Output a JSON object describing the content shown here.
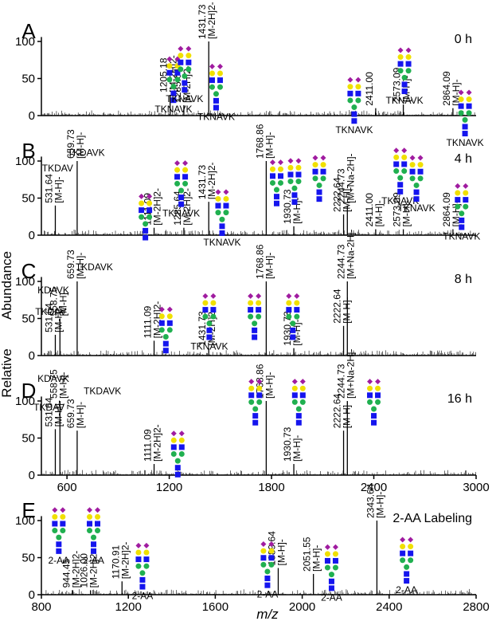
{
  "chart_data": {
    "type": "line",
    "ylabel": "Relative Abundance",
    "xlabel": "m/z",
    "colors": {
      "hexnac": "#1515ee",
      "hex": "#20b050",
      "gal": "#f0e000",
      "neuac": "#a01ca0",
      "line": "#000000"
    },
    "panels": [
      {
        "label": "A",
        "timepoint": "0 h",
        "xlim": [
          450,
          3000
        ],
        "xticks": [],
        "yticks": [
          0,
          50,
          100
        ],
        "peaks": [
          {
            "mz": 1205.18,
            "y": 28,
            "ann": [
              "1205.18",
              "[M-2H]2-"
            ]
          },
          {
            "mz": 1285.64,
            "y": 14,
            "ann": [
              "1285.64",
              "[M-2H]2-"
            ]
          },
          {
            "mz": 1431.73,
            "y": 100,
            "ann": [
              "1431.73",
              "[M-2H]2-"
            ]
          },
          {
            "mz": 2411.0,
            "y": 10,
            "ann": [
              "2411.00"
            ]
          },
          {
            "mz": 2573.09,
            "y": 15,
            "ann": [
              "2573.09",
              "[M-H]-"
            ]
          },
          {
            "mz": 2864.09,
            "y": 10,
            "ann": [
              "2864.09",
              "[M-H]-"
            ]
          }
        ],
        "glycans": [
          {
            "mz": 1225,
            "y": 80,
            "label": "TKNAVK"
          },
          {
            "mz": 1290,
            "y": 94,
            "label": "TKNAVK"
          },
          {
            "mz": 1475,
            "y": 70,
            "label": "TKNAVK"
          },
          {
            "mz": 2285,
            "y": 52,
            "label": "TKNAVK"
          },
          {
            "mz": 2580,
            "y": 92,
            "label": "TKNAVK"
          },
          {
            "mz": 2935,
            "y": 35,
            "label": "TKNAVK"
          }
        ]
      },
      {
        "label": "B",
        "timepoint": "4 h",
        "xlim": [
          450,
          3000
        ],
        "xticks": [],
        "yticks": [
          0,
          50,
          100
        ],
        "peaks": [
          {
            "mz": 531.64,
            "y": 40,
            "ann": [
              "531.64",
              "[M-H]-"
            ]
          },
          {
            "mz": 659.73,
            "y": 100,
            "ann": [
              "659.73",
              "[M-H]-"
            ]
          },
          {
            "mz": 1111.09,
            "y": 10,
            "ann": [
              "1111.09",
              "[M-2H]2-"
            ]
          },
          {
            "mz": 1285.64,
            "y": 10,
            "ann": [
              "1285.64",
              "[M-2H]2-"
            ]
          },
          {
            "mz": 1431.73,
            "y": 45,
            "ann": [
              "1431.73",
              "[M-2H]2-"
            ]
          },
          {
            "mz": 1768.86,
            "y": 100,
            "ann": [
              "1768.86",
              "[M-H]-"
            ]
          },
          {
            "mz": 1930.73,
            "y": 12,
            "ann": [
              "1930.73",
              "[M-H]-"
            ]
          },
          {
            "mz": 2222.64,
            "y": 28,
            "ann": [
              "2222.64",
              "[M-H]-"
            ]
          },
          {
            "mz": 2244.73,
            "y": 40,
            "ann": [
              "2244.73",
              "[M+Na-2H]-"
            ]
          },
          {
            "mz": 2411.0,
            "y": 8,
            "ann": [
              "2411.00",
              "[M-H]-"
            ]
          },
          {
            "mz": 2573.09,
            "y": 8,
            "ann": [
              "2573.09",
              "[M-H]-"
            ]
          },
          {
            "mz": 2864.09,
            "y": 8,
            "ann": [
              "2864.09",
              "[M-H]-"
            ]
          }
        ],
        "texts": [
          {
            "mz": 545,
            "y": 86,
            "label": "TKDAV"
          },
          {
            "mz": 712,
            "y": 107,
            "label": "TKDAVK"
          }
        ],
        "glycans": [
          {
            "mz": 1060,
            "y": 56,
            "label": ""
          },
          {
            "mz": 1270,
            "y": 101,
            "label": "TKNAVK"
          },
          {
            "mz": 1510,
            "y": 62,
            "label": "TKNAVK"
          },
          {
            "mz": 1830,
            "y": 102,
            "label": ""
          },
          {
            "mz": 1935,
            "y": 104,
            "label": ""
          },
          {
            "mz": 2080,
            "y": 108,
            "label": ""
          },
          {
            "mz": 2555,
            "y": 118,
            "label": "TKNAVK"
          },
          {
            "mz": 2650,
            "y": 108,
            "label": "TKNAVK"
          },
          {
            "mz": 2915,
            "y": 70,
            "label": "TKNAVK"
          }
        ]
      },
      {
        "label": "C",
        "timepoint": "8 h",
        "xlim": [
          450,
          3000
        ],
        "xticks": [],
        "yticks": [
          0,
          50,
          100
        ],
        "peaks": [
          {
            "mz": 531.64,
            "y": 28,
            "ann": [
              "531.64",
              "[M-H]-"
            ]
          },
          {
            "mz": 558.75,
            "y": 50,
            "ann": [
              "558.75",
              "[M-H]-"
            ]
          },
          {
            "mz": 659.73,
            "y": 100,
            "ann": [
              "659.73",
              "[M-H]-"
            ]
          },
          {
            "mz": 1111.09,
            "y": 20,
            "ann": [
              "1111.09",
              "[M-2H]2-"
            ]
          },
          {
            "mz": 1431.73,
            "y": 10,
            "ann": [
              "1431.73",
              "[M-2H]2-"
            ]
          },
          {
            "mz": 1768.86,
            "y": 100,
            "ann": [
              "1768.86",
              "[M-H]-"
            ]
          },
          {
            "mz": 1930.73,
            "y": 10,
            "ann": [
              "1930.73",
              "[M-H]-"
            ]
          },
          {
            "mz": 2222.64,
            "y": 40,
            "ann": [
              "2222.64",
              "[M-H]-"
            ]
          },
          {
            "mz": 2244.73,
            "y": 100,
            "ann": [
              "2244.73",
              "[M+Na-2H]-"
            ]
          }
        ],
        "texts": [
          {
            "mz": 520,
            "y": 84,
            "label": "KDAVK"
          },
          {
            "mz": 505,
            "y": 55,
            "label": "TKDAV"
          },
          {
            "mz": 760,
            "y": 115,
            "label": "TKDAVK"
          }
        ],
        "glycans": [
          {
            "mz": 1180,
            "y": 66,
            "label": ""
          },
          {
            "mz": 1435,
            "y": 84,
            "label": "TKNAVK"
          },
          {
            "mz": 1700,
            "y": 84,
            "label": ""
          },
          {
            "mz": 1925,
            "y": 84,
            "label": ""
          }
        ]
      },
      {
        "label": "D",
        "timepoint": "16 h",
        "xlim": [
          450,
          3000
        ],
        "xticks": [
          600,
          1200,
          1800,
          2400,
          3000
        ],
        "yticks": [
          0,
          50,
          100
        ],
        "peaks": [
          {
            "mz": 531.64,
            "y": 62,
            "ann": [
              "531.64",
              "[M-H]-"
            ]
          },
          {
            "mz": 558.75,
            "y": 100,
            "ann": [
              "558.75",
              "[M-H]-"
            ]
          },
          {
            "mz": 659.73,
            "y": 60,
            "ann": [
              "659.73",
              "[M-H]-"
            ]
          },
          {
            "mz": 1111.09,
            "y": 15,
            "ann": [
              "1111.09",
              "[M-2H]2-"
            ]
          },
          {
            "mz": 1768.86,
            "y": 100,
            "ann": [
              "1768.86",
              "[M-H]-"
            ]
          },
          {
            "mz": 1930.73,
            "y": 15,
            "ann": [
              "1930.73",
              "[M-H]-"
            ]
          },
          {
            "mz": 2222.64,
            "y": 60,
            "ann": [
              "2222.64",
              "[M-H]-"
            ]
          },
          {
            "mz": 2244.73,
            "y": 100,
            "ann": [
              "2244.73",
              "[M+Na-2H]-"
            ]
          }
        ],
        "texts": [
          {
            "mz": 520,
            "y": 126,
            "label": "KDAVK"
          },
          {
            "mz": 495,
            "y": 87,
            "label": "TKDAV"
          },
          {
            "mz": 808,
            "y": 109,
            "label": "TKDAVK"
          }
        ],
        "glycans": [
          {
            "mz": 1250,
            "y": 60,
            "label": ""
          },
          {
            "mz": 1705,
            "y": 130,
            "label": ""
          },
          {
            "mz": 1960,
            "y": 130,
            "label": ""
          },
          {
            "mz": 2400,
            "y": 130,
            "label": ""
          }
        ]
      },
      {
        "label": "E",
        "timepoint": "2-AA Labeling",
        "xlim": [
          800,
          2800
        ],
        "xticks": [
          800,
          1200,
          1600,
          2000,
          2400,
          2800
        ],
        "yticks": [
          0,
          50,
          100
        ],
        "peaks": [
          {
            "mz": 944.45,
            "y": 6,
            "ann": [
              "944.45",
              "[M-2H]2-"
            ]
          },
          {
            "mz": 1026.0,
            "y": 6,
            "ann": [
              "1026.00",
              "[M-2H]2-"
            ]
          },
          {
            "mz": 1170.91,
            "y": 18,
            "ann": [
              "1170.91",
              "[M-2H]2-"
            ]
          },
          {
            "mz": 1889.64,
            "y": 36,
            "ann": [
              "1889.64",
              "[M-H]-"
            ]
          },
          {
            "mz": 2051.55,
            "y": 28,
            "ann": [
              "2051.55",
              "[M-H]-"
            ]
          },
          {
            "mz": 2343.64,
            "y": 100,
            "ann": [
              "2343.64",
              "[M-H]-"
            ]
          }
        ],
        "glycans": [
          {
            "mz": 880,
            "y": 118,
            "label": "2-AA"
          },
          {
            "mz": 1040,
            "y": 118,
            "label": "2-AA"
          },
          {
            "mz": 1265,
            "y": 70,
            "label": "2-AA"
          },
          {
            "mz": 1840,
            "y": 72,
            "label": "2-AA"
          },
          {
            "mz": 2135,
            "y": 68,
            "label": "2-AA"
          },
          {
            "mz": 2480,
            "y": 78,
            "label": "2-AA"
          }
        ]
      }
    ]
  }
}
